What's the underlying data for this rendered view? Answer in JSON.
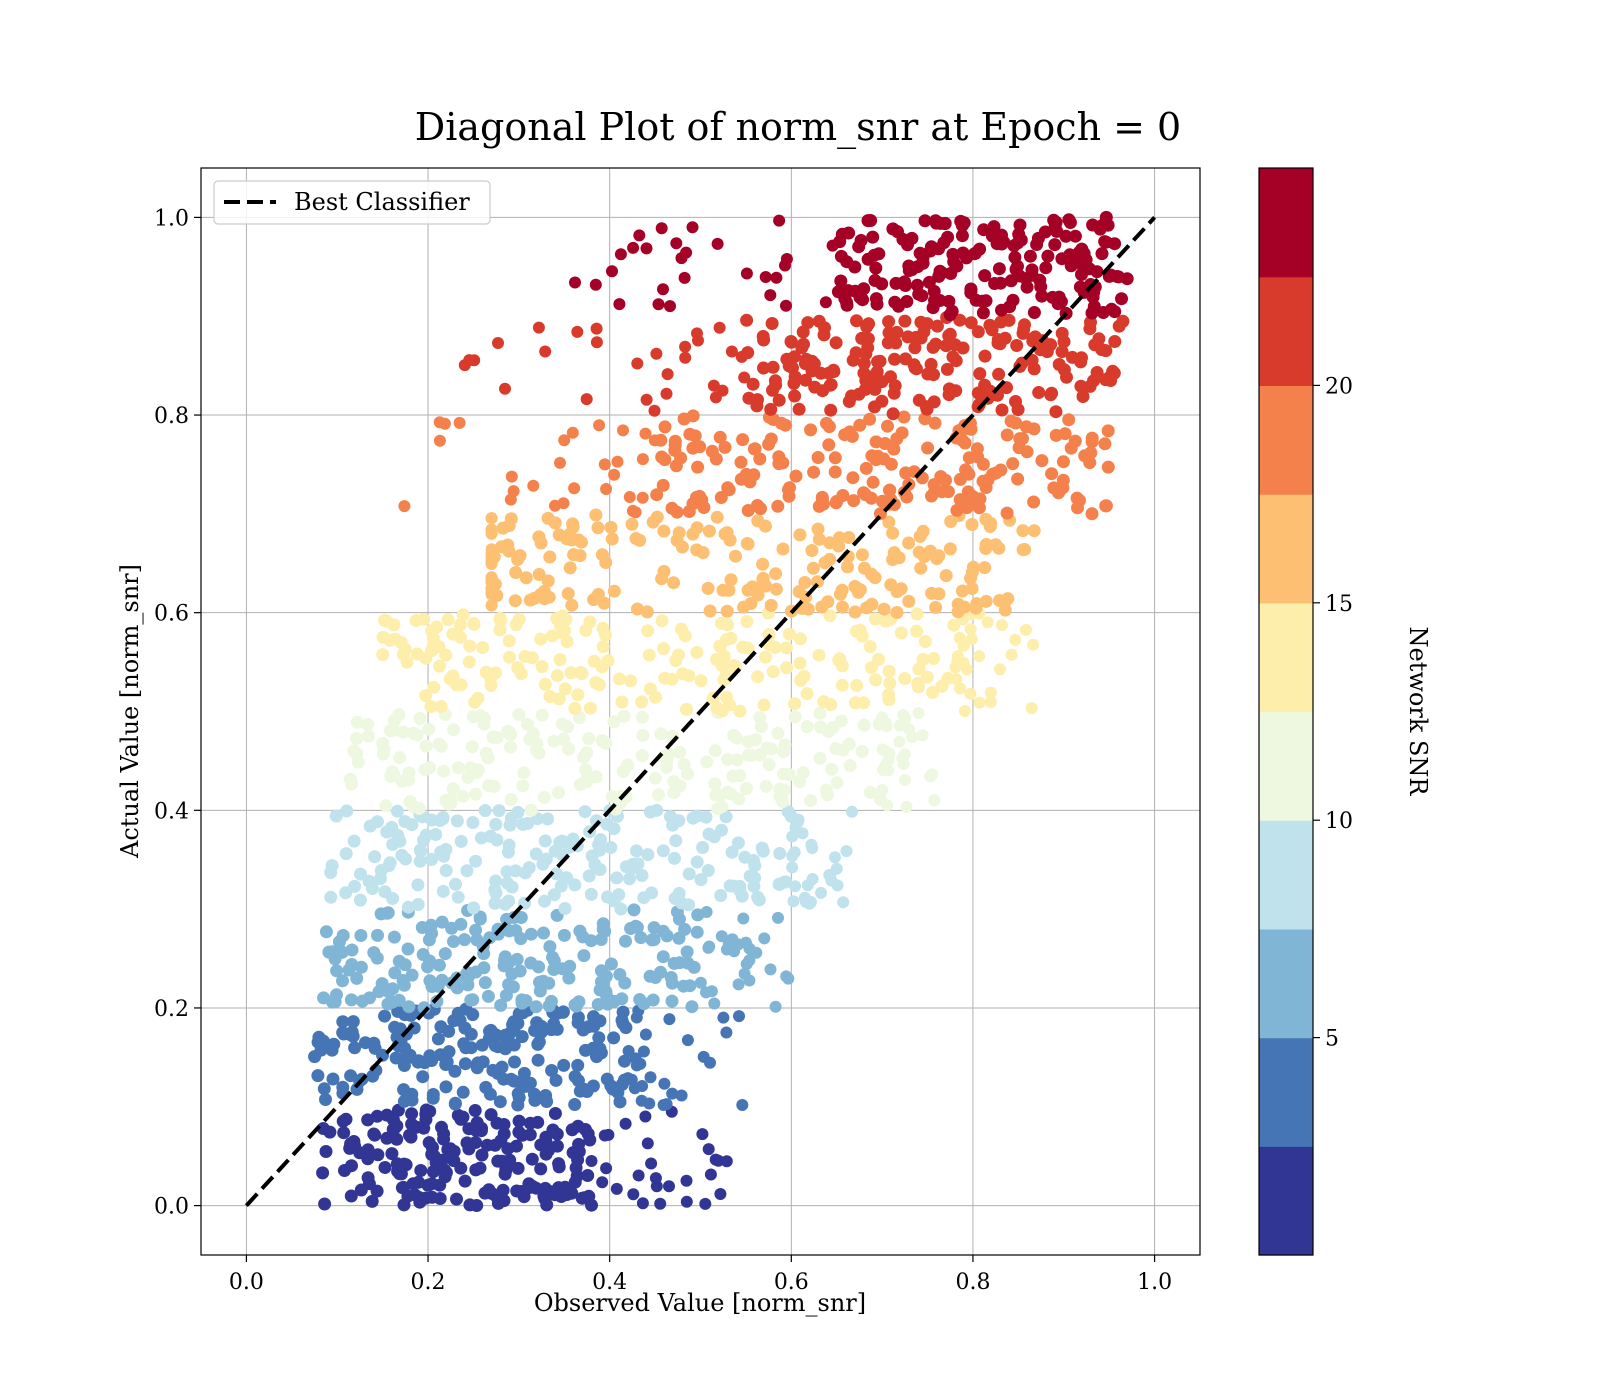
{
  "chart_data": {
    "type": "scatter",
    "title": "Diagonal Plot of norm_snr at Epoch = 0",
    "xlabel": "Observed Value [norm_snr]",
    "ylabel": "Actual Value [norm_snr]",
    "xlim": [
      -0.05,
      1.05
    ],
    "ylim": [
      -0.05,
      1.05
    ],
    "xticks": [
      "0.0",
      "0.2",
      "0.4",
      "0.6",
      "0.8",
      "1.0"
    ],
    "yticks": [
      "0.0",
      "0.2",
      "0.4",
      "0.6",
      "0.8",
      "1.0"
    ],
    "grid": true,
    "legend": {
      "position": "top-left",
      "entries": [
        "Best Classifier"
      ]
    },
    "reference_line": {
      "name": "Best Classifier",
      "style": "dashed",
      "color": "#000000",
      "x": [
        0,
        1
      ],
      "y": [
        0,
        1
      ]
    },
    "colorbar": {
      "label": "Network SNR",
      "range": [
        0,
        25
      ],
      "ticks": [
        "5",
        "10",
        "15",
        "20"
      ],
      "colors": [
        "#313695",
        "#4575b4",
        "#80b5d6",
        "#bfe2ec",
        "#eef7df",
        "#fdeeab",
        "#fdbf71",
        "#f4804c",
        "#d83b2b",
        "#a50026"
      ]
    },
    "bands": [
      {
        "y": [
          0.0,
          0.1
        ],
        "x_core": [
          0.08,
          0.38
        ],
        "x_tail": 0.53,
        "color": "#313695"
      },
      {
        "y": [
          0.1,
          0.2
        ],
        "x_core": [
          0.075,
          0.42
        ],
        "x_tail": 0.55,
        "color": "#4575b4"
      },
      {
        "y": [
          0.2,
          0.3
        ],
        "x_core": [
          0.08,
          0.5
        ],
        "x_tail": 0.6,
        "color": "#80b5d6"
      },
      {
        "y": [
          0.3,
          0.4
        ],
        "x_core": [
          0.09,
          0.6
        ],
        "x_tail": 0.67,
        "color": "#bfe2ec"
      },
      {
        "y": [
          0.4,
          0.5
        ],
        "x_core": [
          0.11,
          0.7
        ],
        "x_tail": 0.76,
        "color": "#eef7df"
      },
      {
        "y": [
          0.5,
          0.6
        ],
        "x_core": [
          0.15,
          0.78
        ],
        "x_tail": 0.88,
        "color": "#fdeeab"
      },
      {
        "y": [
          0.6,
          0.7
        ],
        "x_core": [
          0.27,
          0.87
        ],
        "x_tail": 0.97,
        "color": "#fdbf71"
      },
      {
        "y": [
          0.7,
          0.8
        ],
        "x_core": [
          0.45,
          0.95
        ],
        "x_tail": 0.95,
        "color": "#f4804c"
      },
      {
        "y": [
          0.8,
          0.9
        ],
        "x_core": [
          0.55,
          0.97
        ],
        "x_tail": 0.97,
        "color": "#d83b2b"
      },
      {
        "y": [
          0.9,
          1.0
        ],
        "x_core": [
          0.65,
          0.97
        ],
        "x_tail": 0.97,
        "color": "#a50026"
      }
    ]
  }
}
